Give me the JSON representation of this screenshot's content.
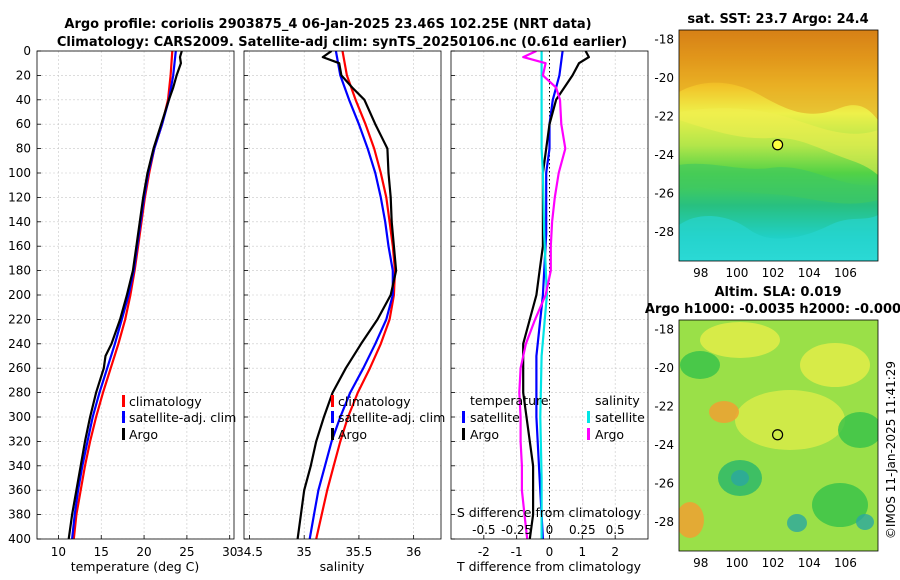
{
  "figure": {
    "title_line1": "Argo profile: coriolis 2903875_4 06-Jan-2025 23.46S 102.25E (NRT data)",
    "title_line2": "Climatology: CARS2009. Satellite-adj clim: synTS_20250106.nc (0.61d earlier)",
    "credit": "©IMOS 11-Jan-2025 11:41:29"
  },
  "colors": {
    "climatology": "#ff0000",
    "satellite": "#0000ff",
    "argo": "#000000",
    "sal_satellite": "#00e5e5",
    "sal_argo": "#ff00ff",
    "grid": "#c8c8c8"
  },
  "chart_data": [
    {
      "type": "line",
      "id": "temperature",
      "xlabel": "temperature (deg C)",
      "ylabel": "",
      "xlim": [
        7.5,
        30.5
      ],
      "ylim": [
        0,
        400
      ],
      "y_reversed": true,
      "xticks": [
        10,
        15,
        20,
        25,
        30
      ],
      "xtick_labels": [
        "10",
        "15",
        "20",
        "25",
        "30"
      ],
      "yticks": [
        0,
        20,
        40,
        60,
        80,
        100,
        120,
        140,
        160,
        180,
        200,
        220,
        240,
        260,
        280,
        300,
        320,
        340,
        360,
        380,
        400
      ],
      "ytick_labels": [
        "0",
        "20",
        "40",
        "60",
        "80",
        "100",
        "120",
        "140",
        "160",
        "180",
        "200",
        "220",
        "240",
        "260",
        "280",
        "300",
        "320",
        "340",
        "360",
        "380",
        "400"
      ],
      "grid": true,
      "legend": [
        "climatology",
        "satellite-adj. clim",
        "Argo"
      ],
      "series": [
        {
          "name": "climatology",
          "color_key": "climatology",
          "depth": [
            0,
            20,
            40,
            60,
            80,
            100,
            120,
            140,
            160,
            180,
            200,
            220,
            240,
            260,
            280,
            300,
            320,
            340,
            360,
            380,
            400
          ],
          "values": [
            23.3,
            23.1,
            22.8,
            22.1,
            21.2,
            20.6,
            20.1,
            19.7,
            19.3,
            18.9,
            18.4,
            17.8,
            17.0,
            16.1,
            15.2,
            14.4,
            13.7,
            13.1,
            12.6,
            12.1,
            11.8
          ]
        },
        {
          "name": "satellite-adj. clim",
          "color_key": "satellite",
          "depth": [
            0,
            20,
            40,
            60,
            80,
            100,
            120,
            140,
            160,
            180,
            200,
            220,
            240,
            260,
            280,
            300,
            320,
            340,
            360,
            380,
            400
          ],
          "values": [
            23.7,
            23.4,
            22.9,
            22.1,
            21.2,
            20.5,
            20.0,
            19.6,
            19.2,
            18.8,
            18.2,
            17.4,
            16.6,
            15.7,
            14.8,
            14.0,
            13.4,
            12.8,
            12.3,
            11.9,
            11.6
          ]
        },
        {
          "name": "Argo",
          "color_key": "argo",
          "depth": [
            0,
            5,
            10,
            20,
            30,
            40,
            60,
            80,
            100,
            120,
            140,
            160,
            180,
            200,
            220,
            240,
            250,
            260,
            280,
            300,
            320,
            340,
            360,
            380,
            400
          ],
          "values": [
            24.4,
            24.2,
            24.3,
            23.8,
            23.4,
            22.9,
            22.0,
            21.1,
            20.4,
            19.9,
            19.5,
            19.1,
            18.7,
            18.0,
            17.2,
            16.2,
            15.5,
            15.3,
            14.4,
            13.7,
            13.1,
            12.6,
            12.1,
            11.6,
            11.2
          ]
        }
      ]
    },
    {
      "type": "line",
      "id": "salinity",
      "xlabel": "salinity",
      "xlim": [
        34.45,
        36.25
      ],
      "ylim": [
        0,
        400
      ],
      "y_reversed": true,
      "xticks": [
        34.5,
        35,
        35.5,
        36
      ],
      "xtick_labels": [
        "34.5",
        "35",
        "35.5",
        "36"
      ],
      "grid": true,
      "legend": [
        "climatology",
        "satellite-adj. clim",
        "Argo"
      ],
      "series": [
        {
          "name": "climatology",
          "color_key": "climatology",
          "depth": [
            0,
            20,
            40,
            60,
            80,
            100,
            120,
            140,
            160,
            180,
            200,
            220,
            240,
            260,
            280,
            300,
            320,
            340,
            360,
            380,
            400
          ],
          "values": [
            35.35,
            35.39,
            35.47,
            35.56,
            35.64,
            35.7,
            35.75,
            35.78,
            35.81,
            35.83,
            35.82,
            35.78,
            35.7,
            35.6,
            35.49,
            35.4,
            35.33,
            35.27,
            35.21,
            35.16,
            35.11
          ]
        },
        {
          "name": "satellite-adj. clim",
          "color_key": "satellite",
          "depth": [
            0,
            20,
            40,
            60,
            80,
            100,
            120,
            140,
            160,
            180,
            200,
            220,
            240,
            260,
            280,
            300,
            320,
            340,
            360,
            380,
            400
          ],
          "values": [
            35.29,
            35.33,
            35.41,
            35.5,
            35.58,
            35.65,
            35.7,
            35.74,
            35.77,
            35.81,
            35.81,
            35.75,
            35.65,
            35.54,
            35.42,
            35.33,
            35.25,
            35.19,
            35.13,
            35.09,
            35.05
          ]
        },
        {
          "name": "Argo",
          "color_key": "argo",
          "depth": [
            0,
            5,
            10,
            20,
            30,
            40,
            60,
            80,
            100,
            120,
            140,
            160,
            180,
            200,
            220,
            240,
            260,
            280,
            300,
            320,
            340,
            360,
            380,
            400
          ],
          "values": [
            35.25,
            35.17,
            35.32,
            35.34,
            35.44,
            35.55,
            35.65,
            35.76,
            35.77,
            35.79,
            35.8,
            35.82,
            35.84,
            35.79,
            35.67,
            35.52,
            35.38,
            35.26,
            35.18,
            35.11,
            35.06,
            35.0,
            34.97,
            34.94
          ]
        }
      ]
    },
    {
      "type": "line",
      "id": "difference",
      "xlabel": "T difference from climatology",
      "secondary_label": "S difference from climatology",
      "xlim": [
        -3,
        3
      ],
      "ylim": [
        0,
        400
      ],
      "y_reversed": true,
      "xticks": [
        -2,
        -1,
        0,
        1,
        2
      ],
      "xtick_labels": [
        "-2",
        "-1",
        "0",
        "1",
        "2"
      ],
      "s_xticks": [
        -0.5,
        -0.25,
        0,
        0.25,
        0.5
      ],
      "s_xtick_labels": [
        "-0.5",
        "-0.25",
        "0",
        "0.25",
        "0.5"
      ],
      "s_xlim": [
        -0.75,
        0.75
      ],
      "grid": true,
      "legend_temperature": {
        "title": "temperature",
        "items": [
          "satellite",
          "Argo"
        ]
      },
      "legend_salinity": {
        "title": "salinity",
        "items": [
          "satellite",
          "Argo"
        ]
      },
      "series": [
        {
          "name": "temperature satellite",
          "color_key": "satellite",
          "axis": "T",
          "depth": [
            0,
            20,
            40,
            60,
            80,
            100,
            150,
            200,
            250,
            300,
            350,
            400
          ],
          "values": [
            0.4,
            0.3,
            0.1,
            0.0,
            0.0,
            -0.1,
            -0.1,
            -0.2,
            -0.4,
            -0.4,
            -0.3,
            -0.2
          ]
        },
        {
          "name": "temperature Argo",
          "color_key": "argo",
          "axis": "T",
          "depth": [
            0,
            5,
            10,
            20,
            40,
            60,
            80,
            100,
            120,
            140,
            160,
            180,
            200,
            220,
            240,
            260,
            280,
            300,
            320,
            340,
            360,
            380,
            400
          ],
          "values": [
            1.1,
            1.2,
            0.9,
            0.7,
            0.2,
            0.0,
            -0.1,
            -0.2,
            -0.2,
            -0.2,
            -0.2,
            -0.3,
            -0.4,
            -0.6,
            -0.8,
            -0.8,
            -0.8,
            -0.7,
            -0.6,
            -0.5,
            -0.5,
            -0.5,
            -0.6
          ]
        },
        {
          "name": "salinity satellite",
          "color_key": "sal_satellite",
          "axis": "S",
          "depth": [
            0,
            20,
            40,
            60,
            80,
            100,
            150,
            200,
            250,
            300,
            350,
            400
          ],
          "values": [
            -0.06,
            -0.06,
            -0.06,
            -0.06,
            -0.06,
            -0.05,
            -0.04,
            -0.02,
            -0.06,
            -0.07,
            -0.06,
            -0.06
          ]
        },
        {
          "name": "salinity Argo",
          "color_key": "sal_argo",
          "axis": "S",
          "depth": [
            0,
            5,
            10,
            20,
            30,
            40,
            60,
            80,
            100,
            120,
            140,
            160,
            180,
            200,
            220,
            240,
            260,
            280,
            300,
            320,
            340,
            360,
            380,
            400
          ],
          "values": [
            -0.1,
            -0.2,
            -0.03,
            -0.05,
            0.05,
            0.08,
            0.09,
            0.12,
            0.07,
            0.04,
            0.02,
            0.01,
            0.01,
            -0.03,
            -0.11,
            -0.18,
            -0.22,
            -0.23,
            -0.22,
            -0.22,
            -0.21,
            -0.21,
            -0.19,
            -0.17
          ]
        }
      ]
    },
    {
      "type": "heatmap",
      "id": "sst_map",
      "title": "sat. SST: 23.7 Argo: 24.4",
      "xlim": [
        96.8,
        107.8
      ],
      "ylim": [
        -29.5,
        -17.5
      ],
      "xticks": [
        98,
        100,
        102,
        104,
        106
      ],
      "xtick_labels": [
        "98",
        "100",
        "102",
        "104",
        "106"
      ],
      "yticks": [
        -18,
        -20,
        -22,
        -24,
        -26,
        -28
      ],
      "ytick_labels": [
        "-18",
        "-20",
        "-22",
        "-24",
        "-26",
        "-28"
      ],
      "marker": {
        "lon": 102.25,
        "lat": -23.46
      }
    },
    {
      "type": "heatmap",
      "id": "sla_map",
      "title_line1": "Altim. SLA: 0.019",
      "title_line2": "Argo h1000: -0.0035 h2000: -0.000",
      "xlim": [
        96.8,
        107.8
      ],
      "ylim": [
        -29.5,
        -17.5
      ],
      "xticks": [
        98,
        100,
        102,
        104,
        106
      ],
      "xtick_labels": [
        "98",
        "100",
        "102",
        "104",
        "106"
      ],
      "yticks": [
        -18,
        -20,
        -22,
        -24,
        -26,
        -28
      ],
      "ytick_labels": [
        "-18",
        "-20",
        "-22",
        "-24",
        "-26",
        "-28"
      ],
      "marker": {
        "lon": 102.25,
        "lat": -23.46
      }
    }
  ]
}
